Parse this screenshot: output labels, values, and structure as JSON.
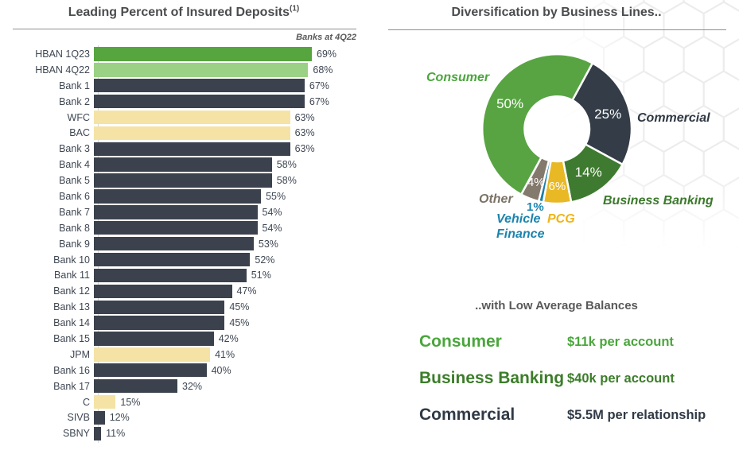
{
  "left_panel": {
    "title": "Leading Percent of Insured Deposits",
    "superscript": "(1)",
    "note": "Banks at 4Q22"
  },
  "right_panel": {
    "title": "Diversification by Business Lines..",
    "balances_title": "..with Low Average Balances"
  },
  "balances": [
    {
      "label": "Consumer",
      "value": "$11k per account",
      "color": "#4aa63c"
    },
    {
      "label": "Business Banking",
      "value": "$40k per account",
      "color": "#3c7d2a"
    },
    {
      "label": "Commercial",
      "value": "$5.5M per relationship",
      "color": "#303a46"
    }
  ],
  "chart_data": [
    {
      "type": "bar",
      "orientation": "horizontal",
      "title": "Leading Percent of Insured Deposits(1)",
      "note": "Banks at 4Q22",
      "value_suffix": "%",
      "xlim": [
        9,
        69
      ],
      "legend": "none",
      "grid": false,
      "rows": [
        {
          "label": "HBAN 1Q23",
          "value": 69,
          "color": "#57a53e"
        },
        {
          "label": "HBAN 4Q22",
          "value": 68,
          "color": "#9ad185"
        },
        {
          "label": "Bank 1",
          "value": 67,
          "color": "#3b424d"
        },
        {
          "label": "Bank 2",
          "value": 67,
          "color": "#3b424d"
        },
        {
          "label": "WFC",
          "value": 63,
          "color": "#f5e3a6"
        },
        {
          "label": "BAC",
          "value": 63,
          "color": "#f5e3a6"
        },
        {
          "label": "Bank 3",
          "value": 63,
          "color": "#3b424d"
        },
        {
          "label": "Bank 4",
          "value": 58,
          "color": "#3b424d"
        },
        {
          "label": "Bank 5",
          "value": 58,
          "color": "#3b424d"
        },
        {
          "label": "Bank 6",
          "value": 55,
          "color": "#3b424d"
        },
        {
          "label": "Bank 7",
          "value": 54,
          "color": "#3b424d"
        },
        {
          "label": "Bank 8",
          "value": 54,
          "color": "#3b424d"
        },
        {
          "label": "Bank 9",
          "value": 53,
          "color": "#3b424d"
        },
        {
          "label": "Bank 10",
          "value": 52,
          "color": "#3b424d"
        },
        {
          "label": "Bank 11",
          "value": 51,
          "color": "#3b424d"
        },
        {
          "label": "Bank 12",
          "value": 47,
          "color": "#3b424d"
        },
        {
          "label": "Bank 13",
          "value": 45,
          "color": "#3b424d"
        },
        {
          "label": "Bank 14",
          "value": 45,
          "color": "#3b424d"
        },
        {
          "label": "Bank 15",
          "value": 42,
          "color": "#3b424d"
        },
        {
          "label": "JPM",
          "value": 41,
          "color": "#f5e3a6"
        },
        {
          "label": "Bank 16",
          "value": 40,
          "color": "#3b424d"
        },
        {
          "label": "Bank 17",
          "value": 32,
          "color": "#3b424d"
        },
        {
          "label": "C",
          "value": 15,
          "color": "#f5e3a6"
        },
        {
          "label": "SIVB",
          "value": 12,
          "color": "#3b424d"
        },
        {
          "label": "SBNY",
          "value": 11,
          "color": "#3b424d"
        }
      ]
    },
    {
      "type": "pie",
      "subtype": "donut",
      "title": "Diversification by Business Lines..",
      "start_angle_deg": 28.5,
      "direction": "clockwise",
      "value_suffix": "%",
      "slices": [
        {
          "label": "Commercial",
          "slug": "commercial",
          "value": 25,
          "color": "#343d47",
          "label_color": "#2f3842"
        },
        {
          "label": "Business Banking",
          "slug": "business-banking",
          "value": 14,
          "color": "#3e7a2f",
          "label_color": "#3c7a2c"
        },
        {
          "label": "PCG",
          "slug": "pcg",
          "value": 6,
          "color": "#e9b825",
          "label_color": "#efb414"
        },
        {
          "label": "Vehicle Finance",
          "slug": "vehicle-finance",
          "value": 1,
          "color": "#1d7fa8",
          "label_color": "#1b84ad"
        },
        {
          "label": "Other",
          "slug": "other",
          "value": 4,
          "color": "#84796d",
          "label_color": "#7b7265"
        },
        {
          "label": "Consumer",
          "slug": "consumer",
          "value": 50,
          "color": "#58a443",
          "label_color": "#4aa63c"
        }
      ]
    }
  ]
}
